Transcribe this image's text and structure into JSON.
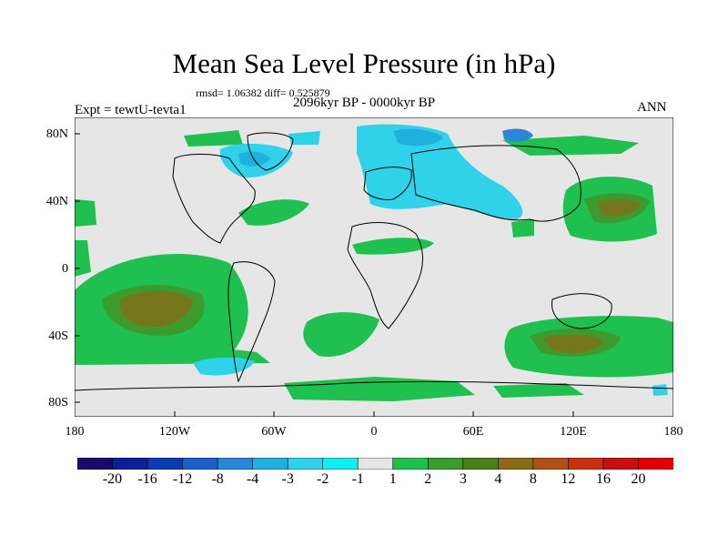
{
  "title": "Mean Sea Level Pressure (in hPa)",
  "stats": "rmsd= 1.06382 diff= 0.525879",
  "experiment": "Expt = tewtU-tevta1",
  "period": "2096kyr BP - 0000kyr BP",
  "season": "ANN",
  "lat_ticks": [
    "80N",
    "40N",
    "0",
    "40S",
    "80S"
  ],
  "lon_ticks": [
    "180",
    "120W",
    "60W",
    "0",
    "60E",
    "120E",
    "180"
  ],
  "colorbar": {
    "labels": [
      "-20",
      "-16",
      "-12",
      "-8",
      "-4",
      "-3",
      "-2",
      "-1",
      "1",
      "2",
      "3",
      "4",
      "8",
      "12",
      "16",
      "20"
    ],
    "colors": [
      "#1a0a6b",
      "#0d1f96",
      "#0a3bb0",
      "#1a5fc7",
      "#2a86d6",
      "#1fb0e0",
      "#30d2ea",
      "#10eef0",
      "#e6e6e6",
      "#1fbf50",
      "#3d9a2e",
      "#4e7e1a",
      "#8a6a1a",
      "#b0501a",
      "#c8300f",
      "#c81010",
      "#e00000"
    ]
  },
  "colors": {
    "neutral": "#e6e6e6",
    "pos2": "#1fbf50",
    "pos3": "#3d9a2e",
    "pos4": "#8a6a1a",
    "neg2": "#30d2ea",
    "neg3": "#1fb0e0",
    "neg4": "#2a86d6"
  }
}
